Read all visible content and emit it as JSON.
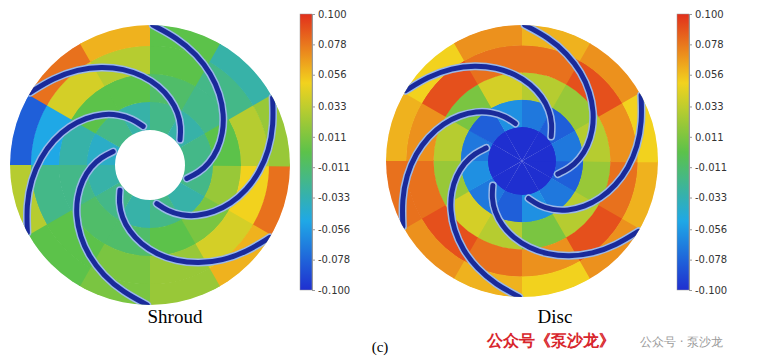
{
  "chart_data": [
    {
      "type": "heatmap",
      "title": "Shroud",
      "cells": [
        [
          null,
          null,
          null,
          null,
          null,
          null,
          null,
          null,
          null,
          null,
          null,
          null
        ],
        [
          -0.02,
          -0.03,
          -0.02,
          -0.03,
          -0.02,
          -0.03,
          -0.04,
          -0.02,
          -0.03,
          -0.02,
          -0.03,
          -0.02
        ],
        [
          0.02,
          0.01,
          0.0,
          -0.01,
          -0.01,
          -0.02,
          -0.03,
          0.0,
          0.0,
          -0.01,
          -0.02,
          0.0
        ],
        [
          0.05,
          0.04,
          0.02,
          0.01,
          0.0,
          -0.02,
          -0.05,
          0.04,
          0.03,
          0.0,
          -0.02,
          0.03
        ],
        [
          0.08,
          0.06,
          0.02,
          0.01,
          0.0,
          0.03,
          -0.08,
          0.08,
          0.06,
          0.0,
          -0.03,
          0.02
        ]
      ],
      "colorbar_range": [
        -0.1,
        0.1
      ],
      "colorbar_ticks": [
        {
          "value": 0.1,
          "label": "0.100"
        },
        0.078,
        0.056,
        0.033,
        0.011,
        -0.011,
        -0.033,
        -0.056,
        -0.078,
        {
          "value": -0.1,
          "label": "-0.100"
        }
      ]
    },
    {
      "type": "heatmap",
      "title": "Disc",
      "cells": [
        [
          -0.1,
          -0.1,
          -0.1,
          -0.1,
          -0.1,
          -0.1,
          -0.1,
          -0.1,
          -0.1,
          -0.1,
          -0.1,
          -0.1
        ],
        [
          -0.08,
          -0.07,
          -0.06,
          -0.08,
          -0.07,
          -0.06,
          -0.07,
          -0.08,
          -0.06,
          -0.07,
          -0.08,
          -0.07
        ],
        [
          0.02,
          0.03,
          0.01,
          0.03,
          0.04,
          0.02,
          0.03,
          0.01,
          0.04,
          0.03,
          0.02,
          0.03
        ],
        [
          0.08,
          0.09,
          0.07,
          0.08,
          0.09,
          0.08,
          0.07,
          0.09,
          0.08,
          0.08,
          0.09,
          0.07
        ],
        [
          0.06,
          0.07,
          0.05,
          0.06,
          0.07,
          0.08,
          0.06,
          0.05,
          0.07,
          0.06,
          0.07,
          0.05
        ]
      ],
      "colorbar_range": [
        -0.1,
        0.1
      ],
      "colorbar_ticks": [
        {
          "value": 0.1,
          "label": "0.100"
        },
        0.078,
        0.056,
        0.033,
        0.011,
        -0.011,
        -0.033,
        -0.056,
        -0.078,
        {
          "value": -0.1,
          "label": "-0.100"
        }
      ]
    }
  ],
  "caption": "(c)",
  "watermark": [
    "公众号《泵沙龙》",
    "公众号 · 泵沙龙"
  ]
}
